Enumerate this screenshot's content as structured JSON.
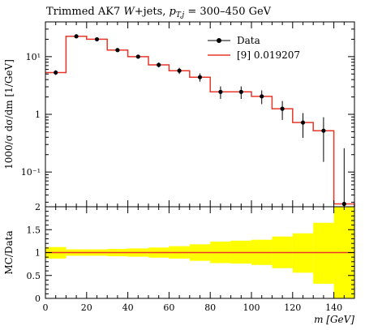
{
  "title": "Trimmed AK7 W+jets, p_{T,j} = 300–450 GeV",
  "title_parts": {
    "main": "Trimmed AK7 ",
    "w": "W",
    "jets": "+jets, ",
    "p": "p",
    "sub": "T,j",
    "range": " = 300–450 GeV"
  },
  "chart_data": [
    {
      "type": "line",
      "panel": "main",
      "xlabel": "m [GeV]",
      "ylabel": "1000/σ dσ/dm [1/GeV]",
      "xlim": [
        0,
        150
      ],
      "ylim": [
        0.025,
        40
      ],
      "yscale": "log",
      "y_ticks": [
        {
          "value": 10,
          "label": "10¹"
        },
        {
          "value": 1,
          "label": "1"
        },
        {
          "value": 0.1,
          "label": "10⁻¹"
        }
      ],
      "legend": {
        "position": "top-right",
        "entries": [
          "Data",
          "[9] 0.019207"
        ]
      },
      "data_series": {
        "name": "Data",
        "color": "#000000",
        "x": [
          5,
          15,
          25,
          35,
          45,
          55,
          65,
          75,
          85,
          95,
          105,
          115,
          125,
          135,
          145
        ],
        "y": [
          5.3,
          22.5,
          20.0,
          13.0,
          10.0,
          7.2,
          5.7,
          4.4,
          2.45,
          2.45,
          2.05,
          1.25,
          0.72,
          0.52,
          0.028
        ],
        "err_lo": [
          0.5,
          1.2,
          1.1,
          0.9,
          0.8,
          0.7,
          0.7,
          0.7,
          0.6,
          0.6,
          0.55,
          0.45,
          0.33,
          0.37,
          0.028
        ],
        "err_hi": [
          0.5,
          1.2,
          1.1,
          0.9,
          0.8,
          0.7,
          0.7,
          0.7,
          0.6,
          0.6,
          0.55,
          0.45,
          0.33,
          0.37,
          0.23
        ]
      },
      "mc_series": {
        "name": "[9] 0.019207",
        "color": "#e8372a",
        "bin_edges": [
          0,
          10,
          20,
          30,
          40,
          50,
          60,
          70,
          80,
          90,
          100,
          110,
          120,
          130,
          140,
          150
        ],
        "y": [
          5.3,
          22.5,
          20.0,
          13.0,
          10.0,
          7.2,
          5.7,
          4.4,
          2.45,
          2.45,
          2.05,
          1.25,
          0.72,
          0.52,
          0.028
        ]
      }
    },
    {
      "type": "area",
      "panel": "ratio",
      "ylabel": "MC/Data",
      "xlabel": "m [GeV]",
      "xlim": [
        0,
        150
      ],
      "ylim": [
        0,
        2
      ],
      "y_ticks": [
        0,
        0.5,
        1,
        1.5,
        2
      ],
      "x_ticks": [
        0,
        20,
        40,
        60,
        80,
        100,
        120,
        140
      ],
      "band_color": "#ffff00",
      "ratio_line_color": "#e8372a",
      "bin_edges": [
        0,
        10,
        20,
        30,
        40,
        50,
        60,
        70,
        80,
        90,
        100,
        110,
        120,
        130,
        140,
        150
      ],
      "band_lo": [
        0.87,
        0.93,
        0.93,
        0.92,
        0.91,
        0.89,
        0.87,
        0.82,
        0.77,
        0.76,
        0.73,
        0.66,
        0.56,
        0.32,
        0.0
      ],
      "band_hi": [
        1.12,
        1.07,
        1.07,
        1.08,
        1.09,
        1.11,
        1.14,
        1.18,
        1.24,
        1.26,
        1.28,
        1.35,
        1.42,
        1.65,
        2.0
      ],
      "ratio": [
        1,
        1,
        1,
        1,
        1,
        1,
        1,
        1,
        1,
        1,
        1,
        1,
        1,
        1,
        1
      ]
    }
  ]
}
